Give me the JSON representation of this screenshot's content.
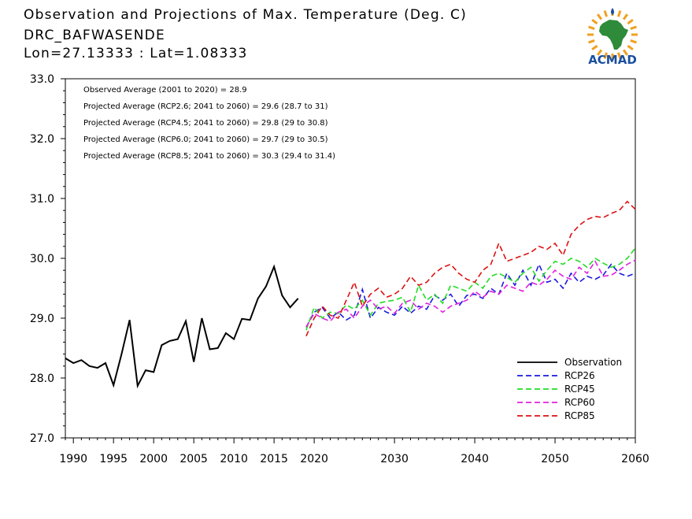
{
  "header": {
    "title": "Observation and Projections of Max. Temperature (Deg. C)",
    "station": "DRC_BAFWASENDE",
    "coords": "Lon=27.13333 : Lat=1.08333"
  },
  "logo": {
    "text": "ACMAD",
    "icon": "africa-sun-logo-icon",
    "colors": {
      "africa": "#2e8b3a",
      "rays": "#f0a020",
      "text": "#1a4fa0"
    }
  },
  "chart_data": {
    "type": "line",
    "xlim": [
      1989,
      2060
    ],
    "ylim": [
      27.0,
      33.0
    ],
    "x_ticks": [
      1990,
      1995,
      2000,
      2005,
      2010,
      2015,
      2020,
      2030,
      2040,
      2050,
      2060
    ],
    "y_ticks": [
      "27.0",
      "28.0",
      "29.0",
      "30.0",
      "31.0",
      "32.0",
      "33.0"
    ],
    "grid": false,
    "legend_position": "bottom-right",
    "annotations": [
      "Observed Average (2001 to 2020) = 28.9",
      "Projected Average (RCP2.6; 2041 to 2060) = 29.6 (28.7 to 31)",
      "Projected Average (RCP4.5; 2041 to 2060) = 29.8 (29 to 30.8)",
      "Projected Average (RCP6.0; 2041 to 2060) = 29.7 (29 to 30.5)",
      "Projected Average (RCP8.5; 2041 to 2060) = 30.3 (29.4 to 31.4)"
    ],
    "series": [
      {
        "name": "Observation",
        "color": "#000000",
        "dash": "solid",
        "x": [
          1989,
          1990,
          1991,
          1992,
          1993,
          1994,
          1995,
          1996,
          1997,
          1998,
          1999,
          2000,
          2001,
          2002,
          2003,
          2004,
          2005,
          2006,
          2007,
          2008,
          2009,
          2010,
          2011,
          2012,
          2013,
          2014,
          2015,
          2016,
          2017,
          2018,
          2019
        ],
        "y": [
          28.33,
          28.25,
          28.3,
          28.2,
          28.17,
          28.25,
          27.88,
          28.4,
          28.97,
          27.87,
          28.13,
          28.1,
          28.55,
          28.62,
          28.65,
          28.95,
          28.27,
          29.0,
          28.48,
          28.5,
          28.75,
          28.65,
          28.99,
          28.97,
          29.33,
          29.53,
          29.86,
          29.38,
          29.18,
          29.33,
          null
        ]
      },
      {
        "name": "RCP26",
        "color": "#1a1adf",
        "dash": "dashed",
        "x": [
          2019,
          2020,
          2021,
          2022,
          2023,
          2024,
          2025,
          2026,
          2027,
          2028,
          2029,
          2030,
          2031,
          2032,
          2033,
          2034,
          2035,
          2036,
          2037,
          2038,
          2039,
          2040,
          2041,
          2042,
          2043,
          2044,
          2045,
          2046,
          2047,
          2048,
          2049,
          2050,
          2051,
          2052,
          2053,
          2054,
          2055,
          2056,
          2057,
          2058,
          2059,
          2060
        ],
        "y": [
          28.85,
          29.1,
          29.18,
          29.0,
          29.1,
          28.97,
          29.05,
          29.48,
          29.0,
          29.18,
          29.1,
          29.05,
          29.2,
          29.08,
          29.2,
          29.15,
          29.38,
          29.3,
          29.4,
          29.2,
          29.38,
          29.4,
          29.33,
          29.5,
          29.4,
          29.75,
          29.55,
          29.8,
          29.55,
          29.9,
          29.6,
          29.65,
          29.5,
          29.75,
          29.6,
          29.7,
          29.65,
          29.72,
          29.9,
          29.75,
          29.7,
          29.75
        ]
      },
      {
        "name": "RCP45",
        "color": "#22dd22",
        "dash": "dashed",
        "x": [
          2019,
          2020,
          2021,
          2022,
          2023,
          2024,
          2025,
          2026,
          2027,
          2028,
          2029,
          2030,
          2031,
          2032,
          2033,
          2034,
          2035,
          2036,
          2037,
          2038,
          2039,
          2040,
          2041,
          2042,
          2043,
          2044,
          2045,
          2046,
          2047,
          2048,
          2049,
          2050,
          2051,
          2052,
          2053,
          2054,
          2055,
          2056,
          2057,
          2058,
          2059,
          2060
        ],
        "y": [
          28.8,
          29.18,
          29.0,
          29.1,
          29.08,
          29.22,
          29.15,
          29.3,
          29.05,
          29.25,
          29.28,
          29.3,
          29.35,
          29.1,
          29.55,
          29.3,
          29.4,
          29.25,
          29.55,
          29.5,
          29.45,
          29.6,
          29.5,
          29.7,
          29.75,
          29.68,
          29.6,
          29.75,
          29.85,
          29.62,
          29.8,
          29.95,
          29.9,
          30.0,
          29.95,
          29.85,
          30.0,
          29.92,
          29.85,
          29.9,
          30.0,
          30.17
        ]
      },
      {
        "name": "RCP60",
        "color": "#e020e0",
        "dash": "dashed",
        "x": [
          2019,
          2020,
          2021,
          2022,
          2023,
          2024,
          2025,
          2026,
          2027,
          2028,
          2029,
          2030,
          2031,
          2032,
          2033,
          2034,
          2035,
          2036,
          2037,
          2038,
          2039,
          2040,
          2041,
          2042,
          2043,
          2044,
          2045,
          2046,
          2047,
          2048,
          2049,
          2050,
          2051,
          2052,
          2053,
          2054,
          2055,
          2056,
          2057,
          2058,
          2059,
          2060
        ],
        "y": [
          28.85,
          29.08,
          29.0,
          28.95,
          29.1,
          29.15,
          29.0,
          29.2,
          29.3,
          29.15,
          29.2,
          29.08,
          29.25,
          29.3,
          29.15,
          29.25,
          29.2,
          29.1,
          29.2,
          29.25,
          29.3,
          29.45,
          29.35,
          29.45,
          29.4,
          29.55,
          29.5,
          29.45,
          29.6,
          29.55,
          29.65,
          29.8,
          29.7,
          29.65,
          29.85,
          29.75,
          29.95,
          29.7,
          29.72,
          29.8,
          29.9,
          29.97
        ]
      },
      {
        "name": "RCP85",
        "color": "#dd1111",
        "dash": "dashed",
        "x": [
          2019,
          2020,
          2021,
          2022,
          2023,
          2024,
          2025,
          2026,
          2027,
          2028,
          2029,
          2030,
          2031,
          2032,
          2033,
          2034,
          2035,
          2036,
          2037,
          2038,
          2039,
          2040,
          2041,
          2042,
          2043,
          2044,
          2045,
          2046,
          2047,
          2048,
          2049,
          2050,
          2051,
          2052,
          2053,
          2054,
          2055,
          2056,
          2057,
          2058,
          2059,
          2060
        ],
        "y": [
          28.7,
          29.0,
          29.2,
          29.05,
          29.0,
          29.3,
          29.6,
          29.2,
          29.4,
          29.5,
          29.35,
          29.4,
          29.5,
          29.7,
          29.55,
          29.6,
          29.75,
          29.85,
          29.9,
          29.75,
          29.65,
          29.6,
          29.8,
          29.9,
          30.25,
          29.95,
          30.0,
          30.05,
          30.1,
          30.2,
          30.15,
          30.25,
          30.05,
          30.4,
          30.55,
          30.65,
          30.7,
          30.68,
          30.75,
          30.8,
          30.95,
          30.82
        ]
      }
    ]
  }
}
